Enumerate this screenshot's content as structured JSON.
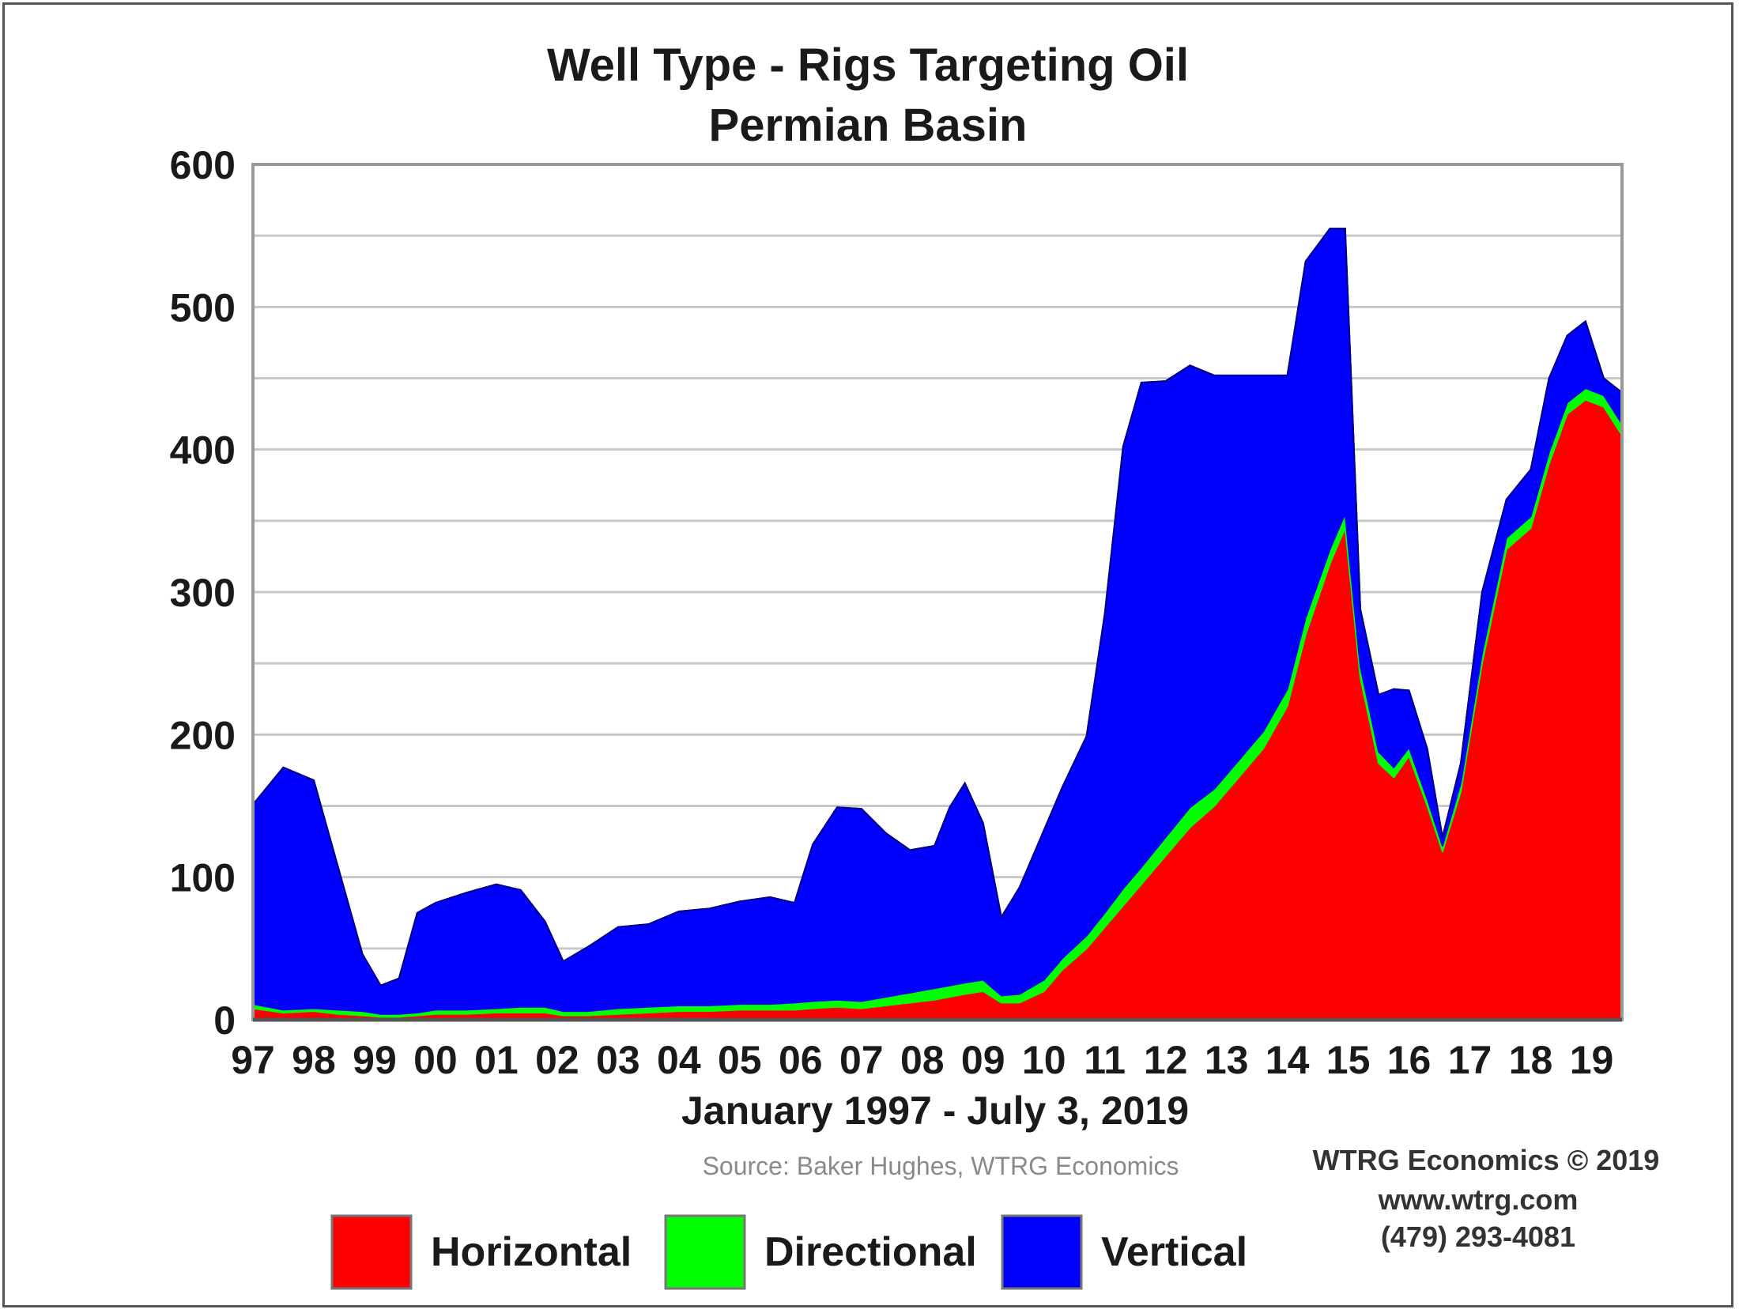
{
  "chart_data": {
    "type": "area",
    "stacked": true,
    "title": "Well Type - Rigs Targeting Oil",
    "subtitle": "Permian Basin",
    "xlabel": "January 1997 - July 3, 2019",
    "ylabel": "",
    "ylim": [
      0,
      600
    ],
    "yticks": [
      "0",
      "100",
      "200",
      "300",
      "400",
      "500",
      "600"
    ],
    "xticks": [
      "97",
      "98",
      "99",
      "00",
      "01",
      "02",
      "03",
      "04",
      "05",
      "06",
      "07",
      "08",
      "09",
      "10",
      "11",
      "12",
      "13",
      "14",
      "15",
      "16",
      "17",
      "18",
      "19"
    ],
    "x": [
      1997.0,
      1997.5,
      1998.0,
      1998.4,
      1998.8,
      1999.1,
      1999.4,
      1999.7,
      2000.0,
      2000.5,
      2001.0,
      2001.4,
      2001.8,
      2002.1,
      2002.5,
      2003.0,
      2003.5,
      2004.0,
      2004.5,
      2005.0,
      2005.5,
      2005.9,
      2006.2,
      2006.6,
      2007.0,
      2007.4,
      2007.8,
      2008.2,
      2008.45,
      2008.7,
      2009.0,
      2009.3,
      2009.6,
      2010.0,
      2010.3,
      2010.7,
      2011.0,
      2011.3,
      2011.6,
      2012.0,
      2012.4,
      2012.8,
      2013.2,
      2013.6,
      2014.0,
      2014.3,
      2014.7,
      2014.95,
      2015.2,
      2015.5,
      2015.75,
      2016.0,
      2016.3,
      2016.55,
      2016.85,
      2017.2,
      2017.6,
      2018.0,
      2018.3,
      2018.6,
      2018.9,
      2019.2,
      2019.5
    ],
    "series": [
      {
        "name": "Horizontal",
        "color": "#ff0000",
        "values": [
          8,
          5,
          6,
          4,
          3,
          2,
          2,
          3,
          4,
          4,
          5,
          5,
          5,
          3,
          3,
          4,
          5,
          6,
          6,
          7,
          7,
          7,
          8,
          9,
          8,
          10,
          12,
          14,
          16,
          18,
          20,
          12,
          12,
          20,
          35,
          50,
          65,
          80,
          95,
          115,
          135,
          150,
          170,
          190,
          220,
          270,
          320,
          345,
          240,
          180,
          170,
          185,
          150,
          118,
          160,
          250,
          330,
          345,
          390,
          425,
          435,
          430,
          410
        ]
      },
      {
        "name": "Directional",
        "color": "#00ff00",
        "values": [
          3,
          2,
          2,
          3,
          3,
          2,
          2,
          2,
          3,
          3,
          3,
          4,
          4,
          3,
          3,
          4,
          4,
          4,
          4,
          4,
          4,
          5,
          5,
          5,
          5,
          6,
          7,
          8,
          8,
          8,
          8,
          5,
          6,
          8,
          8,
          9,
          10,
          12,
          12,
          13,
          14,
          12,
          12,
          12,
          12,
          12,
          10,
          10,
          8,
          8,
          7,
          6,
          5,
          4,
          6,
          7,
          8,
          8,
          8,
          8,
          8,
          8,
          8
        ]
      },
      {
        "name": "Vertical",
        "color": "#0000ff",
        "values": [
          140,
          170,
          160,
          100,
          40,
          20,
          25,
          70,
          75,
          82,
          87,
          82,
          60,
          35,
          45,
          57,
          58,
          66,
          68,
          72,
          75,
          70,
          110,
          135,
          135,
          115,
          100,
          100,
          125,
          140,
          110,
          55,
          75,
          105,
          120,
          140,
          210,
          310,
          340,
          320,
          310,
          290,
          270,
          250,
          220,
          250,
          225,
          200,
          40,
          40,
          55,
          40,
          35,
          6,
          14,
          43,
          27,
          33,
          52,
          47,
          47,
          12,
          22
        ]
      }
    ],
    "legend_position": "bottom",
    "grid": true
  },
  "source_note": "Source: Baker Hughes, WTRG Economics",
  "credit": {
    "line1": "WTRG Economics © 2019",
    "line2": "www.wtrg.com",
    "line3": "(479) 293-4081"
  }
}
